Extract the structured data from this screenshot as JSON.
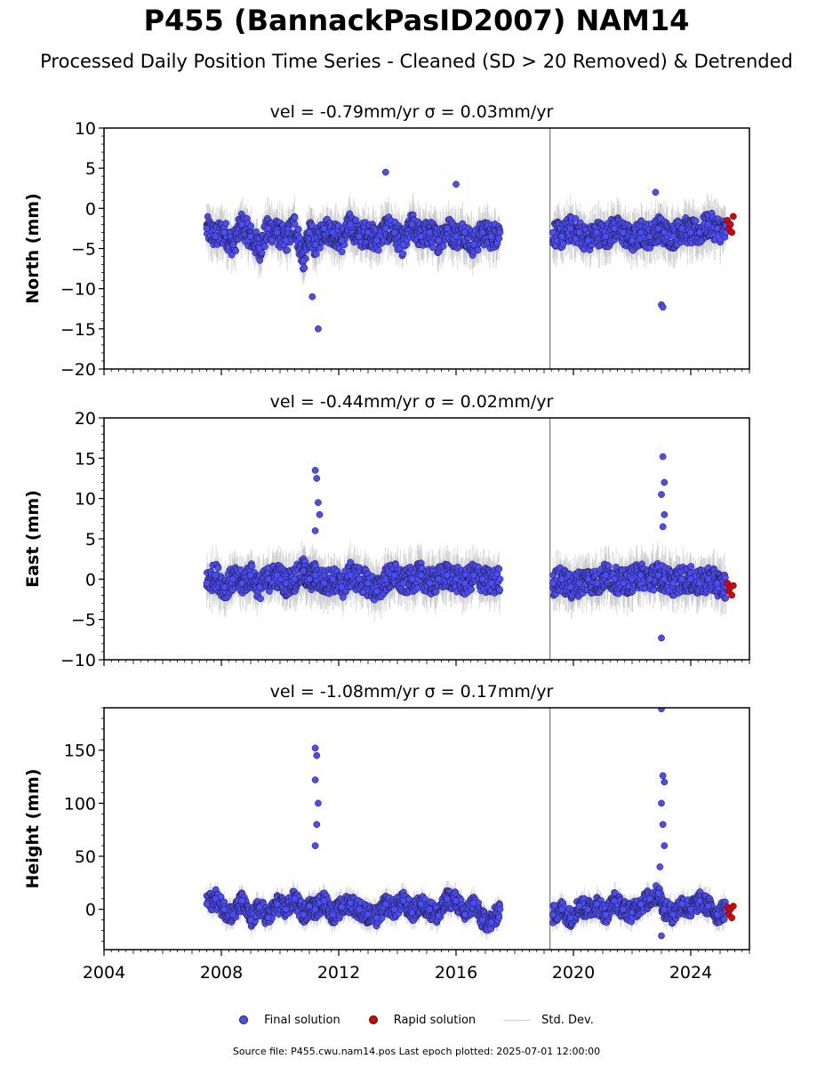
{
  "title": "P455 (BannackPasID2007) NAM14",
  "subtitle": "Processed Daily Position Time Series - Cleaned (SD > 20 Removed) & Detrended",
  "legend": {
    "final_label": "Final solution",
    "rapid_label": "Rapid solution",
    "std_label": "Std. Dev."
  },
  "footer": "Source file: P455.cwu.nam14.pos  Last epoch plotted: 2025-07-01 12:00:00",
  "colors": {
    "final": "#4c4cff",
    "rapid": "#e00000",
    "stddev": "#bdbdbd"
  },
  "chart_data": [
    {
      "type": "scatter",
      "title": "vel = -0.79mm/yr   σ = 0.03mm/yr",
      "xlabel": "",
      "ylabel": "North (mm)",
      "xlim": [
        2004,
        2026
      ],
      "ylim": [
        -20,
        10
      ],
      "yticks": [
        10,
        5,
        0,
        -5,
        -10,
        -15,
        -20
      ],
      "ytick_labels": [
        "10",
        "5",
        "0",
        "−5",
        "−10",
        "−15",
        "−20"
      ],
      "series": [
        {
          "name": "Final solution",
          "x": [
            2007.5,
            2007.8,
            2008.1,
            2008.4,
            2008.7,
            2009.0,
            2009.3,
            2009.6,
            2009.9,
            2010.2,
            2010.5,
            2010.8,
            2011.0,
            2011.2,
            2011.5,
            2011.8,
            2012.1,
            2012.4,
            2012.7,
            2013.0,
            2013.3,
            2013.6,
            2013.9,
            2014.2,
            2014.5,
            2014.8,
            2015.1,
            2015.4,
            2015.7,
            2016.0,
            2016.3,
            2016.6,
            2016.9,
            2017.2,
            2017.5,
            2019.3,
            2019.6,
            2019.9,
            2020.2,
            2020.5,
            2020.8,
            2021.1,
            2021.4,
            2021.7,
            2022.0,
            2022.3,
            2022.6,
            2022.9,
            2023.1,
            2023.4,
            2023.7,
            2024.0,
            2024.3,
            2024.6,
            2024.9,
            2025.2
          ],
          "y": [
            -2.5,
            -3.5,
            -3.0,
            -4.5,
            -2.0,
            -3.5,
            -5.0,
            -2.5,
            -3.0,
            -4.0,
            -2.0,
            -6.5,
            -3.0,
            -4.5,
            -2.5,
            -3.0,
            -4.0,
            -2.0,
            -3.5,
            -3.0,
            -4.0,
            -2.5,
            -3.0,
            -4.5,
            -2.0,
            -3.5,
            -3.0,
            -4.0,
            -2.5,
            -3.5,
            -3.0,
            -4.5,
            -3.0,
            -3.5,
            -3.0,
            -3.0,
            -3.5,
            -2.5,
            -3.0,
            -4.0,
            -3.0,
            -3.5,
            -2.5,
            -3.0,
            -4.0,
            -3.0,
            -3.5,
            -2.5,
            -3.0,
            -3.5,
            -2.5,
            -3.0,
            -3.0,
            -2.0,
            -2.5,
            -3.0
          ]
        },
        {
          "name": "Rapid solution",
          "x": [
            2025.25,
            2025.3,
            2025.35,
            2025.4,
            2025.45
          ],
          "y": [
            -1.5,
            -2.5,
            -2.0,
            -3.0,
            -1.0
          ]
        }
      ],
      "outliers": {
        "x": [
          2011.3,
          2011.1,
          2013.6,
          2016.0,
          2022.8,
          2023.0,
          2023.05
        ],
        "y": [
          -15.0,
          -11.0,
          4.5,
          3.0,
          2.0,
          -12.0,
          -12.3
        ]
      }
    },
    {
      "type": "scatter",
      "title": "vel = -0.44mm/yr   σ = 0.02mm/yr",
      "xlabel": "",
      "ylabel": "East (mm)",
      "xlim": [
        2004,
        2026
      ],
      "ylim": [
        -10,
        20
      ],
      "yticks": [
        20,
        15,
        10,
        5,
        0,
        -5,
        -10
      ],
      "ytick_labels": [
        "20",
        "15",
        "10",
        "5",
        "0",
        "−5",
        "−10"
      ],
      "series": [
        {
          "name": "Final solution",
          "x": [
            2007.5,
            2007.8,
            2008.1,
            2008.4,
            2008.7,
            2009.0,
            2009.3,
            2009.6,
            2009.9,
            2010.2,
            2010.5,
            2010.8,
            2011.0,
            2011.2,
            2011.5,
            2011.8,
            2012.1,
            2012.4,
            2012.7,
            2013.0,
            2013.3,
            2013.6,
            2013.9,
            2014.2,
            2014.5,
            2014.8,
            2015.1,
            2015.4,
            2015.7,
            2016.0,
            2016.3,
            2016.6,
            2016.9,
            2017.2,
            2017.5,
            2019.3,
            2019.6,
            2019.9,
            2020.2,
            2020.5,
            2020.8,
            2021.1,
            2021.4,
            2021.7,
            2022.0,
            2022.3,
            2022.6,
            2022.9,
            2023.1,
            2023.4,
            2023.7,
            2024.0,
            2024.3,
            2024.6,
            2024.9,
            2025.2
          ],
          "y": [
            -0.5,
            0.5,
            -1.0,
            0.0,
            -0.5,
            0.5,
            -1.0,
            0.0,
            0.5,
            -0.5,
            0.0,
            1.0,
            0.0,
            0.5,
            -0.5,
            0.0,
            -1.0,
            0.5,
            0.0,
            -0.5,
            -1.5,
            0.0,
            0.5,
            -0.5,
            0.0,
            0.5,
            -0.5,
            0.0,
            0.5,
            0.0,
            -0.5,
            0.5,
            0.0,
            -0.5,
            0.0,
            -0.5,
            0.0,
            -1.0,
            -0.5,
            0.0,
            -0.5,
            0.5,
            0.0,
            -0.5,
            0.0,
            0.5,
            0.0,
            0.5,
            0.0,
            -0.5,
            0.0,
            0.0,
            -0.5,
            0.0,
            -0.5,
            -1.0
          ]
        },
        {
          "name": "Rapid solution",
          "x": [
            2025.25,
            2025.3,
            2025.35,
            2025.4,
            2025.45
          ],
          "y": [
            -0.5,
            -1.5,
            -1.0,
            -2.0,
            -0.8
          ]
        }
      ],
      "outliers": {
        "x": [
          2011.2,
          2011.25,
          2011.3,
          2011.35,
          2011.2,
          2023.05,
          2023.1,
          2023.0,
          2023.1,
          2023.05,
          2023.0
        ],
        "y": [
          13.5,
          12.5,
          9.5,
          8.0,
          6.0,
          15.2,
          12.0,
          10.5,
          8.0,
          6.5,
          -7.3
        ]
      }
    },
    {
      "type": "scatter",
      "title": "vel = -1.08mm/yr   σ = 0.17mm/yr",
      "xlabel": "",
      "ylabel": "Height (mm)",
      "xlim": [
        2004,
        2026
      ],
      "ylim": [
        -38,
        190
      ],
      "yticks": [
        150,
        100,
        50,
        0
      ],
      "ytick_labels": [
        "150",
        "100",
        "50",
        "0"
      ],
      "xticks": [
        2004,
        2008,
        2012,
        2016,
        2020,
        2024
      ],
      "xtick_labels": [
        "2004",
        "2008",
        "2012",
        "2016",
        "2020",
        "2024"
      ],
      "series": [
        {
          "name": "Final solution",
          "x": [
            2007.5,
            2007.8,
            2008.1,
            2008.4,
            2008.7,
            2009.0,
            2009.3,
            2009.6,
            2009.9,
            2010.2,
            2010.5,
            2010.8,
            2011.0,
            2011.2,
            2011.5,
            2011.8,
            2012.1,
            2012.4,
            2012.7,
            2013.0,
            2013.3,
            2013.6,
            2013.9,
            2014.2,
            2014.5,
            2014.8,
            2015.1,
            2015.4,
            2015.7,
            2016.0,
            2016.3,
            2016.6,
            2016.9,
            2017.2,
            2017.5,
            2019.3,
            2019.6,
            2019.9,
            2020.2,
            2020.5,
            2020.8,
            2021.1,
            2021.4,
            2021.7,
            2022.0,
            2022.3,
            2022.6,
            2022.9,
            2023.1,
            2023.4,
            2023.7,
            2024.0,
            2024.3,
            2024.6,
            2024.9,
            2025.2
          ],
          "y": [
            5,
            10,
            0,
            -5,
            8,
            -10,
            2,
            -8,
            5,
            0,
            10,
            -5,
            3,
            0,
            8,
            -5,
            2,
            6,
            0,
            -5,
            -8,
            5,
            0,
            8,
            -3,
            5,
            0,
            -6,
            10,
            8,
            -5,
            6,
            -10,
            -12,
            0,
            -5,
            0,
            -8,
            3,
            0,
            5,
            -5,
            8,
            0,
            -3,
            5,
            10,
            15,
            0,
            -5,
            5,
            0,
            8,
            3,
            -5,
            0
          ]
        },
        {
          "name": "Rapid solution",
          "x": [
            2025.25,
            2025.3,
            2025.35,
            2025.4,
            2025.45
          ],
          "y": [
            2,
            -5,
            0,
            -8,
            3
          ]
        }
      ],
      "outliers": {
        "x": [
          2011.2,
          2011.25,
          2011.2,
          2011.3,
          2011.25,
          2011.2,
          2023.0,
          2023.05,
          2023.1,
          2023.0,
          2023.05,
          2023.1,
          2022.95,
          2023.0
        ],
        "y": [
          152,
          145,
          122,
          100,
          80,
          60,
          189,
          126,
          120,
          100,
          80,
          60,
          40,
          -25
        ]
      }
    }
  ]
}
